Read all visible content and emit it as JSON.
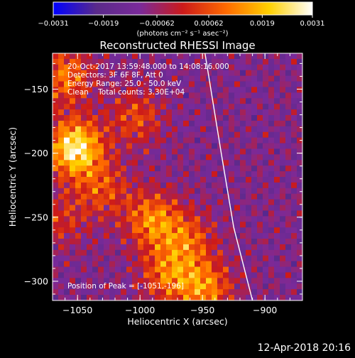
{
  "chart_data": {
    "type": "heatmap",
    "title": "Reconstructed RHESSI Image",
    "xlabel": "Heliocentric X (arcsec)",
    "ylabel": "Heliocentric Y (arcsec)",
    "xlim": [
      -1070,
      -870
    ],
    "ylim": [
      -315,
      -122
    ],
    "x_ticks": [
      -1050,
      -1000,
      -950,
      -900
    ],
    "x_tick_labels": [
      "−1050",
      "−1000",
      "−950",
      "−900"
    ],
    "y_ticks": [
      -150,
      -200,
      -250,
      -300
    ],
    "y_tick_labels": [
      "−150",
      "−200",
      "−250",
      "−300"
    ],
    "colorbar": {
      "min": -0.0031,
      "max": 0.0031,
      "tick_values": [
        -0.0031,
        -0.0019,
        -0.00062,
        0.00062,
        0.0019,
        0.0031
      ],
      "tick_labels": [
        "−0.0031",
        "−0.0019",
        "−0.00062",
        "0.00062",
        "0.0019",
        "0.0031"
      ],
      "units_label": "(photons cm⁻² s⁻¹ asec⁻²)"
    },
    "peak_position": [
      -1051,
      -196
    ],
    "sources": [
      {
        "x": -1052,
        "y": -196,
        "amplitude": 1.0
      },
      {
        "x": -1060,
        "y": -140,
        "amplitude": 0.55
      },
      {
        "x": -1003,
        "y": -172,
        "amplitude": 0.4
      },
      {
        "x": -1030,
        "y": -228,
        "amplitude": 0.4
      },
      {
        "x": -990,
        "y": -252,
        "amplitude": 0.6
      },
      {
        "x": -962,
        "y": -268,
        "amplitude": 0.45
      },
      {
        "x": -978,
        "y": -295,
        "amplitude": 0.5
      },
      {
        "x": -948,
        "y": -306,
        "amplitude": 0.6
      },
      {
        "x": -1063,
        "y": -252,
        "amplitude": 0.3
      }
    ],
    "limb_curve": [
      [
        -948,
        -122
      ],
      [
        -935,
        -200
      ],
      [
        -925,
        -258
      ],
      [
        -910,
        -315
      ]
    ]
  },
  "annotations": {
    "time_range": "20-Oct-2017 13:59:48.000 to 14:08:16.000",
    "detectors": "Detectors: 3F 6F 8F, Att 0",
    "energy_range": "Energy Range: 25.0 - 50.0 keV",
    "clean_counts": "Clean    Total counts: 3.30E+04",
    "peak_label": "Position of Peak = [-1051,-196]"
  },
  "footer_date": "12-Apr-2018 20:16",
  "colors": {
    "background": "#000000",
    "text": "#ffffff",
    "colormap": [
      "#0000ff",
      "#5a2a8a",
      "#7a2a9a",
      "#cc1a1a",
      "#ff6a00",
      "#ffd000",
      "#ffffff"
    ]
  }
}
